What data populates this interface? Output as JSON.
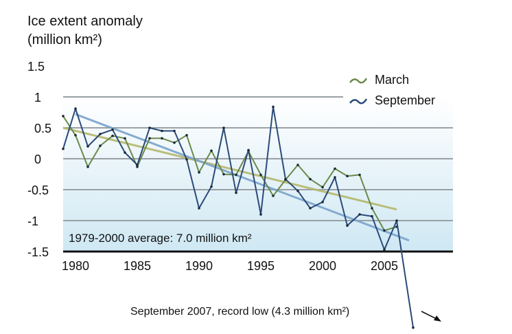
{
  "chart_data": {
    "type": "line",
    "title": "Ice extent anomaly",
    "ylabel_line1": "Ice extent anomaly",
    "ylabel_line2": "(million km²)",
    "xlabel": "",
    "ylim": [
      -1.5,
      1.5
    ],
    "xlim": [
      1979,
      2007
    ],
    "yticks": [
      "1.5",
      "1",
      "0.5",
      "0",
      "-0.5",
      "-1",
      "-1.5"
    ],
    "ytick_values": [
      1.5,
      1,
      0.5,
      0,
      -0.5,
      -1,
      -1.5
    ],
    "xticks": [
      "1980",
      "1985",
      "1990",
      "1995",
      "2000",
      "2005"
    ],
    "xtick_values": [
      1980,
      1985,
      1990,
      1995,
      2000,
      2005
    ],
    "x": [
      1979,
      1980,
      1981,
      1982,
      1983,
      1984,
      1985,
      1986,
      1987,
      1988,
      1989,
      1990,
      1991,
      1992,
      1993,
      1994,
      1995,
      1996,
      1997,
      1998,
      1999,
      2000,
      2001,
      2002,
      2003,
      2004,
      2005,
      2006
    ],
    "series": [
      {
        "name": "March",
        "color": "#6a8a4a",
        "values": [
          0.69,
          0.38,
          -0.13,
          0.21,
          0.37,
          0.33,
          -0.13,
          0.33,
          0.33,
          0.26,
          0.38,
          -0.22,
          0.13,
          -0.25,
          -0.26,
          0.12,
          -0.26,
          -0.6,
          -0.34,
          -0.1,
          -0.33,
          -0.46,
          -0.16,
          -0.28,
          -0.26,
          -0.8,
          -1.16,
          -1.1
        ]
      },
      {
        "name": "September",
        "color": "#2a4a7a",
        "values": [
          0.16,
          0.81,
          0.2,
          0.4,
          0.47,
          0.1,
          -0.1,
          0.5,
          0.45,
          0.45,
          -0.01,
          -0.8,
          -0.45,
          0.5,
          -0.55,
          0.14,
          -0.9,
          0.84,
          -0.33,
          -0.52,
          -0.8,
          -0.7,
          -0.3,
          -1.08,
          -0.9,
          -0.93,
          -1.47,
          -1.0
        ]
      }
    ],
    "trendlines": [
      {
        "name": "March trend",
        "color": "#b5b86e",
        "from": [
          1979,
          0.5
        ],
        "to": [
          2006,
          -0.82
        ]
      },
      {
        "name": "September trend",
        "color": "#7aa3cc",
        "from": [
          1980,
          0.72
        ],
        "to": [
          2007,
          -1.32
        ]
      }
    ],
    "outlier": {
      "year": 2007,
      "value": -2.73,
      "series": "September"
    },
    "annotations": {
      "average": "1979-2000 average: 7.0 million km²",
      "record": "September 2007, record low (4.3 million km²)"
    },
    "legend": {
      "placement": "top-right",
      "entries": [
        "March",
        "September"
      ]
    },
    "grid": true
  }
}
